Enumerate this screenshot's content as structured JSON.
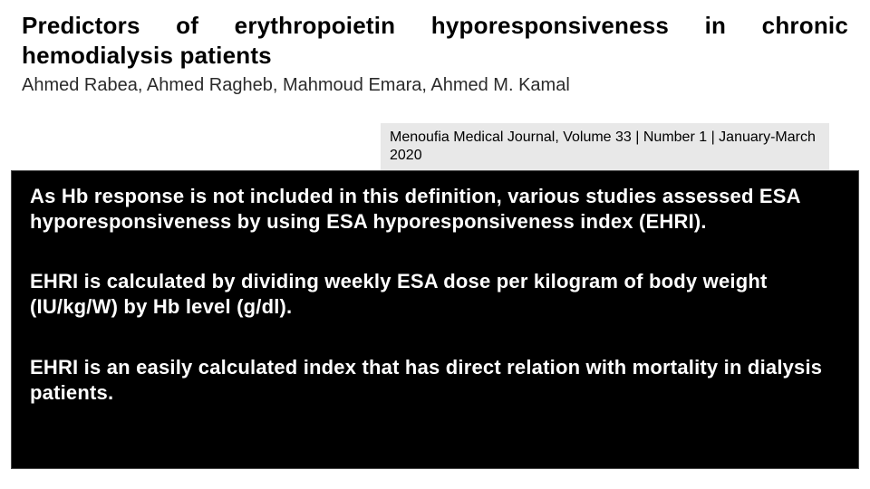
{
  "header": {
    "title": "Predictors of erythropoietin hyporesponsiveness in chronic hemodialysis patients",
    "authors": "Ahmed Rabea, Ahmed Ragheb, Mahmoud Emara, Ahmed M. Kamal"
  },
  "citation": {
    "text": "Menoufia Medical Journal, Volume 33 | Number 1 | January-March 2020"
  },
  "panel": {
    "para1": "As Hb response is not included in this definition, various studies assessed ESA hyporesponsiveness by using ESA hyporesponsiveness index (EHRI).",
    "para2": "EHRI is calculated by dividing weekly ESA dose per kilogram of body weight (IU/kg/W) by Hb level (g/dl).",
    "para3": "EHRI is an easily calculated index that has direct relation with mortality in dialysis patients."
  },
  "style": {
    "title_fontsize": 26,
    "title_weight": 700,
    "authors_fontsize": 20,
    "citation_bg": "#e8e8e8",
    "citation_fontsize": 16,
    "panel_bg": "#000000",
    "panel_text_color": "#ffffff",
    "panel_fontsize": 22,
    "panel_weight": 700,
    "page_bg": "#ffffff"
  }
}
